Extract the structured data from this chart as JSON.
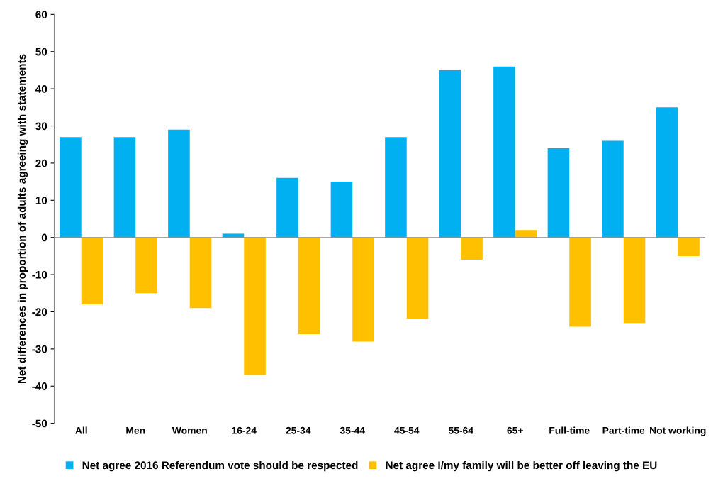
{
  "chart_data": {
    "type": "bar",
    "ylabel": "Net differences in proportion of adults agreeing with statements",
    "categories": [
      "All",
      "Men",
      "Women",
      "16-24",
      "25-34",
      "35-44",
      "45-54",
      "55-64",
      "65+",
      "Full-time",
      "Part-time",
      "Not working"
    ],
    "series": [
      {
        "name": "Net agree 2016 Referendum vote should be respected",
        "color": "#00b0f0",
        "values": [
          27,
          27,
          29,
          1,
          16,
          15,
          27,
          45,
          46,
          24,
          26,
          35
        ]
      },
      {
        "name": "Net agree I/my family will be better off leaving the EU",
        "color": "#ffc000",
        "values": [
          -18,
          -15,
          -19,
          -37,
          -26,
          -28,
          -22,
          -6,
          2,
          -24,
          -23,
          -5
        ]
      }
    ],
    "ylim": [
      -50,
      60
    ],
    "yticks": [
      -50,
      -40,
      -30,
      -20,
      -10,
      0,
      10,
      20,
      30,
      40,
      50,
      60
    ],
    "legend": "bottom"
  }
}
